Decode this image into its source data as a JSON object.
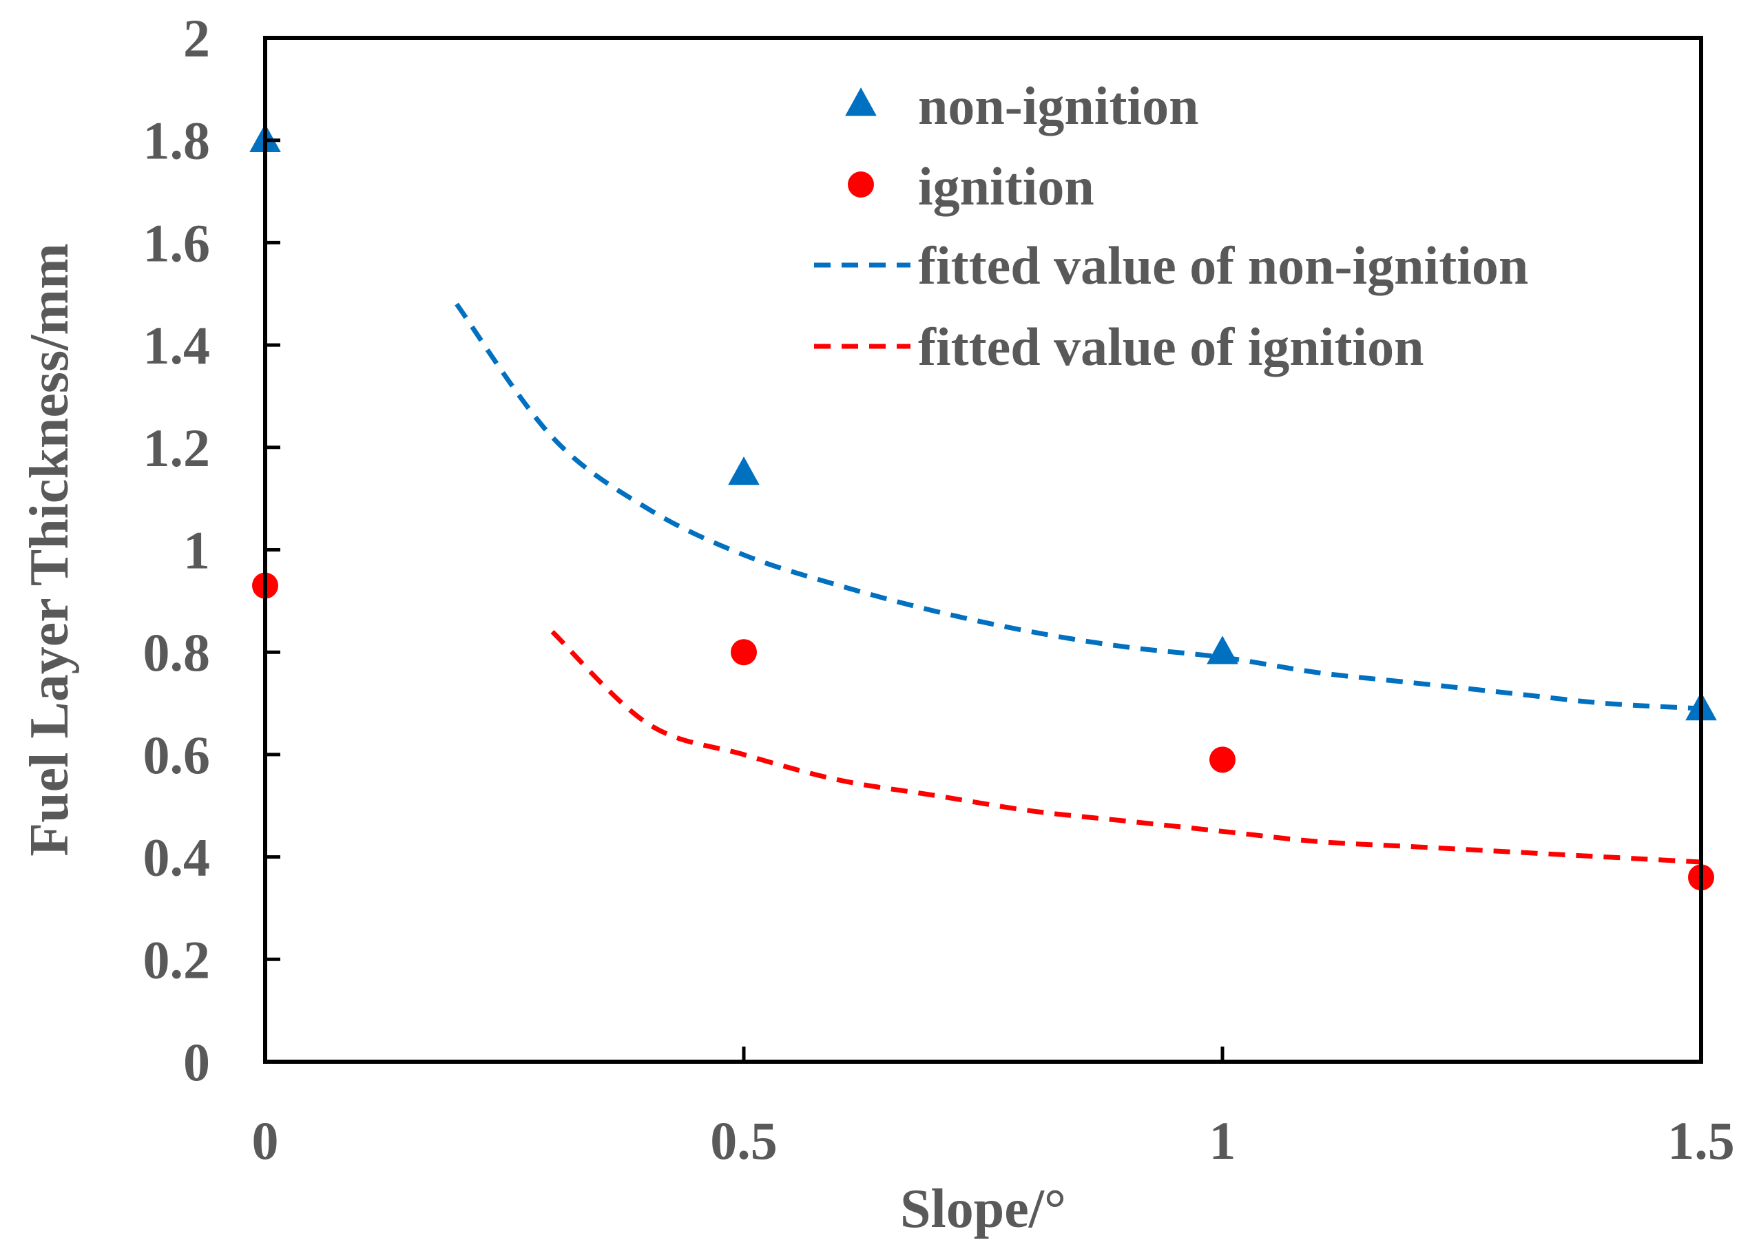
{
  "chart_data": {
    "type": "scatter",
    "xlabel": "Slope/°",
    "ylabel": "Fuel Layer Thickness/mm",
    "xlim": [
      0,
      1.5
    ],
    "ylim": [
      0,
      2
    ],
    "x_ticks": [
      "0",
      "0.5",
      "1",
      "1.5"
    ],
    "x_tick_values": [
      0,
      0.5,
      1,
      1.5
    ],
    "y_ticks": [
      "0",
      "0.2",
      "0.4",
      "0.6",
      "0.8",
      "1",
      "1.2",
      "1.4",
      "1.6",
      "1.8",
      "2"
    ],
    "y_tick_values": [
      0,
      0.2,
      0.4,
      0.6,
      0.8,
      1.0,
      1.2,
      1.4,
      1.6,
      1.8,
      2.0
    ],
    "grid": false,
    "legend_position": "top-right",
    "series": [
      {
        "name": "non-ignition",
        "kind": "scatter",
        "marker": "triangle",
        "color": "#0070C0",
        "points": [
          [
            0,
            1.8
          ],
          [
            0.5,
            1.15
          ],
          [
            1.0,
            0.8
          ],
          [
            1.5,
            0.69
          ]
        ]
      },
      {
        "name": "ignition",
        "kind": "scatter",
        "marker": "circle",
        "color": "#FF0000",
        "points": [
          [
            0,
            0.93
          ],
          [
            0.5,
            0.8
          ],
          [
            1.0,
            0.59
          ],
          [
            1.5,
            0.36
          ]
        ]
      },
      {
        "name": "fitted value of non-ignition",
        "kind": "line",
        "dash": true,
        "color": "#0070C0",
        "points": [
          [
            0.2,
            1.48
          ],
          [
            0.3,
            1.22
          ],
          [
            0.4,
            1.08
          ],
          [
            0.5,
            0.99
          ],
          [
            0.6,
            0.93
          ],
          [
            0.7,
            0.88
          ],
          [
            0.8,
            0.84
          ],
          [
            0.9,
            0.81
          ],
          [
            1.0,
            0.79
          ],
          [
            1.1,
            0.76
          ],
          [
            1.2,
            0.74
          ],
          [
            1.3,
            0.72
          ],
          [
            1.4,
            0.7
          ],
          [
            1.5,
            0.69
          ]
        ]
      },
      {
        "name": "fitted value of ignition",
        "kind": "line",
        "dash": true,
        "color": "#FF0000",
        "points": [
          [
            0.3,
            0.84
          ],
          [
            0.4,
            0.66
          ],
          [
            0.5,
            0.6
          ],
          [
            0.6,
            0.55
          ],
          [
            0.7,
            0.52
          ],
          [
            0.8,
            0.49
          ],
          [
            0.9,
            0.47
          ],
          [
            1.0,
            0.45
          ],
          [
            1.1,
            0.43
          ],
          [
            1.2,
            0.42
          ],
          [
            1.3,
            0.41
          ],
          [
            1.4,
            0.4
          ],
          [
            1.5,
            0.39
          ]
        ]
      }
    ]
  }
}
